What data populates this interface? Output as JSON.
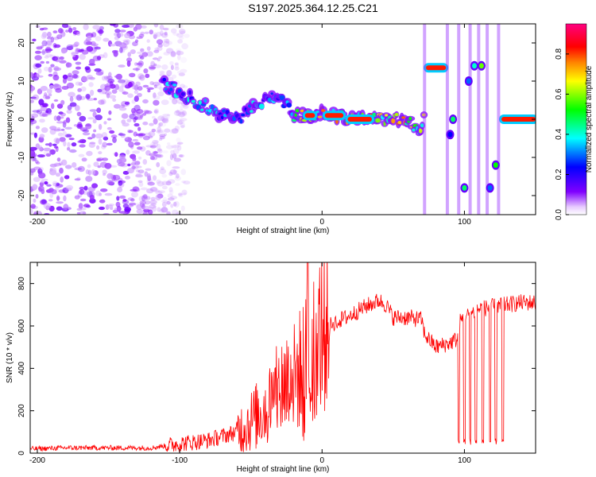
{
  "title": "S197.2025.364.12.25.C21",
  "chart_data": [
    {
      "type": "heatmap",
      "xlabel": "Height of straight line (km)",
      "ylabel": "Frequency (Hz)",
      "xlim": [
        -205,
        150
      ],
      "ylim": [
        -25,
        25
      ],
      "x_ticks": [
        -200,
        -100,
        0,
        100
      ],
      "y_ticks": [
        -20,
        -10,
        0,
        10,
        20
      ],
      "colorbar": {
        "label": "Normalized spectral amplitude",
        "range": [
          0,
          0.95
        ],
        "ticks": [
          "0.0",
          "0.2",
          "0.4",
          "0.6",
          "0.8"
        ],
        "tick_values": [
          0,
          0.2,
          0.4,
          0.6,
          0.8
        ],
        "colormap": [
          "#ffffff",
          "#8000ff",
          "#0000ff",
          "#00ffff",
          "#00ff00",
          "#ffff00",
          "#ff8000",
          "#ff0000",
          "#ff0080"
        ]
      },
      "trace": {
        "x": [
          -110,
          -100,
          -90,
          -80,
          -70,
          -60,
          -50,
          -40,
          -30,
          -20,
          -10,
          0,
          10,
          20,
          30,
          40,
          50,
          60,
          70,
          75,
          85,
          100,
          110,
          130,
          150
        ],
        "y": [
          9,
          7,
          5,
          3,
          1,
          0,
          3,
          5,
          6,
          1,
          1,
          2,
          1,
          0,
          0,
          0,
          0,
          0,
          -4,
          13.5,
          13.5,
          -18,
          14,
          0,
          0
        ]
      }
    },
    {
      "type": "line",
      "xlabel": "Height of straight line (km)",
      "ylabel": "SNR (10 * v/v)",
      "xlim": [
        -205,
        150
      ],
      "ylim": [
        0,
        900
      ],
      "x_ticks": [
        -200,
        -100,
        0,
        100
      ],
      "y_ticks": [
        0,
        200,
        400,
        600,
        800
      ],
      "color": "#ff0000",
      "x": [
        -205,
        -180,
        -150,
        -120,
        -100,
        -80,
        -60,
        -45,
        -35,
        -25,
        -20,
        -15,
        -10,
        -5,
        0,
        10,
        20,
        30,
        40,
        45,
        50,
        60,
        70,
        72,
        80,
        90,
        95,
        97,
        100,
        110,
        120,
        130,
        140,
        150
      ],
      "y": [
        20,
        25,
        25,
        25,
        45,
        60,
        100,
        180,
        250,
        350,
        350,
        400,
        450,
        520,
        580,
        620,
        650,
        690,
        720,
        700,
        640,
        640,
        630,
        560,
        500,
        520,
        540,
        620,
        640,
        680,
        690,
        700,
        710,
        710
      ]
    }
  ]
}
